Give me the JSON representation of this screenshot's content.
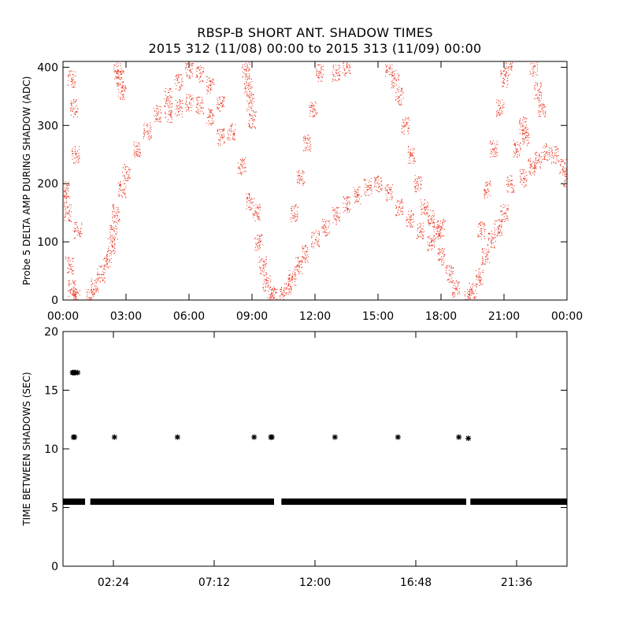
{
  "header": {
    "title": "RBSP-B SHORT ANT. SHADOW TIMES",
    "subtitle": "2015 312 (11/08) 00:00 to 2015 313 (11/09) 00:00"
  },
  "colors": {
    "top_points": "#e8250f",
    "bottom_points": "#000000",
    "frame": "#000000"
  },
  "chart_data": [
    {
      "type": "scatter",
      "ylabel": "Probe 5 DELTA AMP DURING SHADOW (ADC)",
      "xlabel": "",
      "x_unit": "hours",
      "xlim": [
        0,
        24
      ],
      "ylim": [
        0,
        410
      ],
      "x_tick_values": [
        0,
        3,
        6,
        9,
        12,
        15,
        18,
        21,
        24
      ],
      "x_tick_labels": [
        "00:00",
        "03:00",
        "06:00",
        "09:00",
        "12:00",
        "15:00",
        "18:00",
        "21:00",
        "00:00"
      ],
      "y_tick_values": [
        0,
        100,
        200,
        300,
        400
      ],
      "y_tick_labels": [
        "0",
        "100",
        "200",
        "300",
        "400"
      ],
      "marker": "dot",
      "series": [
        {
          "color": "#e8250f",
          "points": [
            [
              0.0,
              180
            ],
            [
              0.1,
              190
            ],
            [
              0.2,
              150
            ],
            [
              0.3,
              60
            ],
            [
              0.4,
              20
            ],
            [
              0.5,
              5
            ],
            [
              0.6,
              3
            ],
            [
              0.4,
              380
            ],
            [
              0.5,
              330
            ],
            [
              0.6,
              250
            ],
            [
              0.7,
              120
            ],
            [
              1.3,
              5
            ],
            [
              1.5,
              25
            ],
            [
              1.8,
              45
            ],
            [
              2.1,
              70
            ],
            [
              2.3,
              95
            ],
            [
              2.4,
              120
            ],
            [
              2.5,
              150
            ],
            [
              2.8,
              190
            ],
            [
              3.0,
              220
            ],
            [
              3.5,
              260
            ],
            [
              4.0,
              290
            ],
            [
              4.5,
              320
            ],
            [
              5.0,
              350
            ],
            [
              5.5,
              375
            ],
            [
              6.0,
              395
            ],
            [
              6.5,
              390
            ],
            [
              7.0,
              370
            ],
            [
              7.5,
              340
            ],
            [
              8.0,
              290
            ],
            [
              8.5,
              230
            ],
            [
              8.9,
              170
            ],
            [
              9.2,
              150
            ],
            [
              5.0,
              320
            ],
            [
              5.5,
              330
            ],
            [
              6.0,
              340
            ],
            [
              6.5,
              335
            ],
            [
              7.0,
              315
            ],
            [
              7.5,
              280
            ],
            [
              2.6,
              395
            ],
            [
              2.7,
              380
            ],
            [
              2.8,
              360
            ],
            [
              8.7,
              395
            ],
            [
              8.8,
              370
            ],
            [
              8.9,
              340
            ],
            [
              9.0,
              310
            ],
            [
              9.3,
              100
            ],
            [
              9.5,
              60
            ],
            [
              9.7,
              30
            ],
            [
              9.9,
              12
            ],
            [
              10.0,
              5
            ],
            [
              10.5,
              8
            ],
            [
              10.7,
              25
            ],
            [
              10.9,
              40
            ],
            [
              11.2,
              60
            ],
            [
              11.5,
              80
            ],
            [
              12.0,
              105
            ],
            [
              12.5,
              125
            ],
            [
              13.0,
              145
            ],
            [
              13.5,
              165
            ],
            [
              14.0,
              180
            ],
            [
              14.5,
              195
            ],
            [
              15.0,
              200
            ],
            [
              15.5,
              185
            ],
            [
              16.0,
              160
            ],
            [
              16.5,
              140
            ],
            [
              17.0,
              120
            ],
            [
              17.5,
              100
            ],
            [
              18.0,
              75
            ],
            [
              18.4,
              45
            ],
            [
              18.7,
              20
            ],
            [
              11.0,
              150
            ],
            [
              11.3,
              210
            ],
            [
              11.6,
              270
            ],
            [
              11.9,
              330
            ],
            [
              12.2,
              390
            ],
            [
              16.0,
              350
            ],
            [
              16.3,
              300
            ],
            [
              16.6,
              250
            ],
            [
              16.9,
              200
            ],
            [
              17.2,
              160
            ],
            [
              17.5,
              140
            ],
            [
              17.8,
              120
            ],
            [
              18.0,
              125
            ],
            [
              15.5,
              400
            ],
            [
              15.8,
              380
            ],
            [
              13.0,
              390
            ],
            [
              13.5,
              400
            ],
            [
              19.3,
              5
            ],
            [
              19.5,
              15
            ],
            [
              19.8,
              40
            ],
            [
              20.1,
              75
            ],
            [
              20.4,
              105
            ],
            [
              20.7,
              125
            ],
            [
              21.0,
              150
            ],
            [
              21.3,
              200
            ],
            [
              21.6,
              260
            ],
            [
              21.9,
              300
            ],
            [
              22.0,
              280
            ],
            [
              19.9,
              120
            ],
            [
              20.2,
              190
            ],
            [
              20.5,
              260
            ],
            [
              20.8,
              330
            ],
            [
              21.0,
              380
            ],
            [
              21.2,
              400
            ],
            [
              21.9,
              210
            ],
            [
              22.3,
              230
            ],
            [
              22.6,
              240
            ],
            [
              23.0,
              255
            ],
            [
              23.4,
              250
            ],
            [
              23.8,
              230
            ],
            [
              24.0,
              210
            ],
            [
              22.4,
              400
            ],
            [
              22.6,
              360
            ],
            [
              22.8,
              330
            ]
          ]
        }
      ]
    },
    {
      "type": "scatter",
      "ylabel": "TIME BETWEEN SHADOWS (SEC)",
      "xlabel": "",
      "x_unit": "hours",
      "xlim": [
        0,
        24
      ],
      "ylim": [
        0,
        20
      ],
      "x_tick_values": [
        2.4,
        7.2,
        12.0,
        16.8,
        21.6
      ],
      "x_tick_labels": [
        "02:24",
        "07:12",
        "12:00",
        "16:48",
        "21:36"
      ],
      "y_tick_values": [
        0,
        5,
        10,
        15,
        20
      ],
      "y_tick_labels": [
        "0",
        "5",
        "10",
        "15",
        "20"
      ],
      "marker": "asterisk",
      "series": [
        {
          "color": "#000000",
          "points": [
            [
              0.45,
              16.5
            ],
            [
              0.5,
              16.5
            ],
            [
              0.55,
              16.5
            ],
            [
              0.6,
              16.5
            ],
            [
              0.7,
              16.5
            ],
            [
              0.5,
              11.0
            ],
            [
              0.55,
              11.0
            ],
            [
              2.45,
              11.0
            ],
            [
              5.45,
              11.0
            ],
            [
              9.1,
              11.0
            ],
            [
              9.9,
              11.0
            ],
            [
              9.95,
              11.0
            ],
            [
              12.95,
              11.0
            ],
            [
              15.95,
              11.0
            ],
            [
              18.85,
              11.0
            ],
            [
              19.3,
              10.9
            ]
          ]
        }
      ],
      "bands": [
        {
          "x_start": 0.0,
          "x_end": 1.05,
          "y": 5.5,
          "color": "#000000"
        },
        {
          "x_start": 1.3,
          "x_end": 10.05,
          "y": 5.5,
          "color": "#000000"
        },
        {
          "x_start": 10.4,
          "x_end": 19.2,
          "y": 5.5,
          "color": "#000000"
        },
        {
          "x_start": 19.4,
          "x_end": 24.0,
          "y": 5.5,
          "color": "#000000"
        }
      ]
    }
  ]
}
